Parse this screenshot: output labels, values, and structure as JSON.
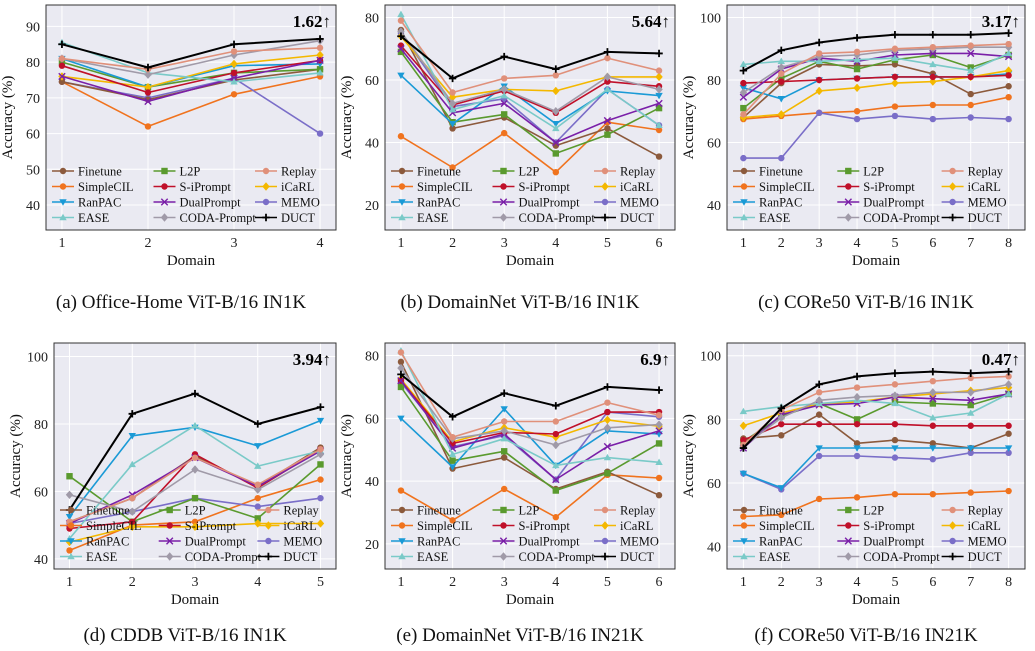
{
  "legend_labels": [
    "Finetune",
    "L2P",
    "Replay",
    "SimpleCIL",
    "S-iPrompt",
    "iCaRL",
    "RanPAC",
    "DualPrompt",
    "MEMO",
    "EASE",
    "CODA-Prompt",
    "DUCT"
  ],
  "methods": [
    {
      "name": "Finetune",
      "color": "#8c5a3c",
      "marker": "circle"
    },
    {
      "name": "L2P",
      "color": "#5a9a2e",
      "marker": "square"
    },
    {
      "name": "Replay",
      "color": "#e0907a",
      "marker": "circle"
    },
    {
      "name": "SimpleCIL",
      "color": "#f0731e",
      "marker": "circle"
    },
    {
      "name": "S-iPrompt",
      "color": "#c0102a",
      "marker": "circle"
    },
    {
      "name": "iCaRL",
      "color": "#f4b800",
      "marker": "diamond"
    },
    {
      "name": "RanPAC",
      "color": "#1a9ad6",
      "marker": "tri-down"
    },
    {
      "name": "DualPrompt",
      "color": "#7a1fa8",
      "marker": "x"
    },
    {
      "name": "MEMO",
      "color": "#7a6ec8",
      "marker": "circle"
    },
    {
      "name": "EASE",
      "color": "#7acac8",
      "marker": "tri-up"
    },
    {
      "name": "CODA-Prompt",
      "color": "#a09aa8",
      "marker": "diamond"
    },
    {
      "name": "DUCT",
      "color": "#000000",
      "marker": "plus"
    }
  ],
  "chart_data": [
    {
      "type": "line",
      "caption": "(a) Office-Home ViT-B/16 IN1K",
      "annotation": "1.62↑",
      "xlabel": "Domain",
      "ylabel": "Accuracy (%)",
      "ylim": [
        33,
        96
      ],
      "yticks": [
        40,
        50,
        60,
        70,
        80,
        90
      ],
      "x": [
        1,
        2,
        3,
        4
      ],
      "series": [
        {
          "name": "Finetune",
          "values": [
            74.5,
            69.5,
            75,
            78
          ]
        },
        {
          "name": "L2P",
          "values": [
            80,
            73,
            77,
            78
          ]
        },
        {
          "name": "Replay",
          "values": [
            81,
            78,
            83,
            84
          ]
        },
        {
          "name": "SimpleCIL",
          "values": [
            74.5,
            62,
            71,
            76
          ]
        },
        {
          "name": "S-iPrompt",
          "values": [
            79,
            71.5,
            77,
            80.5
          ]
        },
        {
          "name": "iCaRL",
          "values": [
            76,
            73,
            79.5,
            82
          ]
        },
        {
          "name": "RanPAC",
          "values": [
            81,
            73,
            79,
            79.5
          ]
        },
        {
          "name": "DualPrompt",
          "values": [
            76,
            69,
            75.5,
            80.5
          ]
        },
        {
          "name": "MEMO",
          "values": [
            74.5,
            70,
            75.5,
            60
          ]
        },
        {
          "name": "EASE",
          "values": [
            85.5,
            77,
            74.5,
            77
          ]
        },
        {
          "name": "CODA-Prompt",
          "values": [
            81,
            76.5,
            82,
            86
          ]
        },
        {
          "name": "DUCT",
          "values": [
            85,
            78.5,
            85,
            86.5
          ]
        }
      ]
    },
    {
      "type": "line",
      "caption": "(b) DomainNet ViT-B/16 IN1K",
      "annotation": "5.64↑",
      "xlabel": "Domain",
      "ylabel": "Accuracy (%)",
      "ylim": [
        12,
        84
      ],
      "yticks": [
        20,
        40,
        60,
        80
      ],
      "x": [
        1,
        2,
        3,
        4,
        5,
        6
      ],
      "series": [
        {
          "name": "Finetune",
          "values": [
            76,
            44.5,
            48,
            39,
            44.5,
            35.5
          ]
        },
        {
          "name": "L2P",
          "values": [
            69,
            46.5,
            49,
            36.5,
            42.5,
            51
          ]
        },
        {
          "name": "Replay",
          "values": [
            79,
            56,
            60.5,
            61.5,
            67,
            63
          ]
        },
        {
          "name": "SimpleCIL",
          "values": [
            42,
            32,
            43,
            30.5,
            46.5,
            44
          ]
        },
        {
          "name": "S-iPrompt",
          "values": [
            71,
            52,
            56.5,
            49.5,
            59.5,
            58
          ]
        },
        {
          "name": "iCaRL",
          "values": [
            74,
            54.5,
            57,
            56.5,
            61,
            61
          ]
        },
        {
          "name": "RanPAC",
          "values": [
            61.5,
            46,
            58,
            46,
            56.5,
            55
          ]
        },
        {
          "name": "DualPrompt",
          "values": [
            70,
            49.5,
            52.5,
            40,
            47,
            52.5
          ]
        },
        {
          "name": "MEMO",
          "values": [
            75,
            51.5,
            54,
            40,
            57,
            45.5
          ]
        },
        {
          "name": "EASE",
          "values": [
            81,
            50.5,
            55,
            44.5,
            57,
            45.5
          ]
        },
        {
          "name": "CODA-Prompt",
          "values": [
            75.5,
            52.5,
            57,
            50,
            61,
            57
          ]
        },
        {
          "name": "DUCT",
          "values": [
            74,
            60.5,
            67.5,
            63.5,
            69,
            68.5
          ]
        }
      ]
    },
    {
      "type": "line",
      "caption": "(c) CORe50 ViT-B/16 IN1K",
      "annotation": "3.17↑",
      "xlabel": "Domain",
      "ylabel": "Accuracy (%)",
      "ylim": [
        32,
        104
      ],
      "yticks": [
        40,
        60,
        80,
        100
      ],
      "x": [
        1,
        2,
        3,
        4,
        5,
        6,
        7,
        8
      ],
      "series": [
        {
          "name": "Finetune",
          "values": [
            68,
            79,
            85,
            84.5,
            85,
            82,
            75.5,
            78
          ]
        },
        {
          "name": "L2P",
          "values": [
            71,
            80.5,
            86,
            83.5,
            86.5,
            88,
            84,
            88
          ]
        },
        {
          "name": "Replay",
          "values": [
            69,
            82,
            88.5,
            89,
            90,
            90.5,
            91,
            91.5
          ]
        },
        {
          "name": "SimpleCIL",
          "values": [
            67.5,
            68.5,
            69.5,
            70,
            71.5,
            72,
            72,
            74.5
          ]
        },
        {
          "name": "S-iPrompt",
          "values": [
            79,
            79.5,
            80,
            80.5,
            81,
            81,
            81,
            81.5
          ]
        },
        {
          "name": "iCaRL",
          "values": [
            68,
            69,
            76.5,
            77.5,
            79,
            79.5,
            81,
            83
          ]
        },
        {
          "name": "RanPAC",
          "values": [
            77.5,
            74,
            80,
            80.5,
            81,
            81,
            81,
            82
          ]
        },
        {
          "name": "DualPrompt",
          "values": [
            74.5,
            83.5,
            87,
            86,
            88,
            88.5,
            88.5,
            87.5
          ]
        },
        {
          "name": "MEMO",
          "values": [
            55,
            55,
            69.5,
            67.5,
            68.5,
            67.5,
            68,
            67.5
          ]
        },
        {
          "name": "EASE",
          "values": [
            85,
            86,
            86,
            86.5,
            87,
            85,
            83,
            88.5
          ]
        },
        {
          "name": "CODA-Prompt",
          "values": [
            76,
            84,
            87.5,
            88,
            89.5,
            90,
            90.5,
            90.5
          ]
        },
        {
          "name": "DUCT",
          "values": [
            83,
            89.5,
            92,
            93.5,
            94.5,
            94.5,
            94.5,
            95
          ]
        }
      ]
    },
    {
      "type": "line",
      "caption": "(d) CDDB ViT-B/16 IN1K",
      "annotation": "3.94↑",
      "xlabel": "Domain",
      "ylabel": "Accuracy (%)",
      "ylim": [
        37,
        104
      ],
      "yticks": [
        40,
        60,
        80,
        100
      ],
      "x": [
        1,
        2,
        3,
        4,
        5
      ],
      "series": [
        {
          "name": "Finetune",
          "values": [
            51,
            58,
            70.5,
            61.5,
            73
          ]
        },
        {
          "name": "L2P",
          "values": [
            64.5,
            51,
            58,
            52,
            68
          ]
        },
        {
          "name": "Replay",
          "values": [
            51,
            58,
            70,
            62,
            72.5
          ]
        },
        {
          "name": "SimpleCIL",
          "values": [
            42.5,
            50,
            51,
            58,
            63.5
          ]
        },
        {
          "name": "S-iPrompt",
          "values": [
            49,
            51,
            71,
            61,
            72.5
          ]
        },
        {
          "name": "iCaRL",
          "values": [
            45,
            49.5,
            49.5,
            50.5,
            50.5
          ]
        },
        {
          "name": "RanPAC",
          "values": [
            52.5,
            76.5,
            79,
            73.5,
            81
          ]
        },
        {
          "name": "DualPrompt",
          "values": [
            50.5,
            59,
            70,
            61.5,
            72
          ]
        },
        {
          "name": "MEMO",
          "values": [
            50.5,
            54,
            58,
            55.5,
            58
          ]
        },
        {
          "name": "EASE",
          "values": [
            46,
            68,
            79.5,
            67.5,
            72
          ]
        },
        {
          "name": "CODA-Prompt",
          "values": [
            59,
            54,
            66.5,
            60.5,
            71
          ]
        },
        {
          "name": "DUCT",
          "values": [
            54.5,
            83,
            89,
            80,
            85
          ]
        }
      ]
    },
    {
      "type": "line",
      "caption": "(e) DomainNet ViT-B/16 IN21K",
      "annotation": "6.9↑",
      "xlabel": "Domain",
      "ylabel": "Accuracy (%)",
      "ylim": [
        12,
        84
      ],
      "yticks": [
        20,
        40,
        60,
        80
      ],
      "x": [
        1,
        2,
        3,
        4,
        5,
        6
      ],
      "series": [
        {
          "name": "Finetune",
          "values": [
            78,
            44,
            47.5,
            37.5,
            43,
            35.5
          ]
        },
        {
          "name": "L2P",
          "values": [
            70,
            46.5,
            49.5,
            37,
            42.5,
            52
          ]
        },
        {
          "name": "Replay",
          "values": [
            81,
            54,
            59,
            59,
            65,
            61
          ]
        },
        {
          "name": "SimpleCIL",
          "values": [
            37,
            27.5,
            37.5,
            28.5,
            42,
            41
          ]
        },
        {
          "name": "S-iPrompt",
          "values": [
            72,
            52,
            55.5,
            55,
            62,
            62
          ]
        },
        {
          "name": "iCaRL",
          "values": [
            72.5,
            52.5,
            57,
            54,
            59.5,
            57.5
          ]
        },
        {
          "name": "RanPAC",
          "values": [
            60,
            44.5,
            63,
            45,
            56,
            55
          ]
        },
        {
          "name": "DualPrompt",
          "values": [
            72,
            50.5,
            55,
            40.5,
            51,
            56
          ]
        },
        {
          "name": "MEMO",
          "values": [
            71.5,
            51,
            54.5,
            40.5,
            62,
            60.5
          ]
        },
        {
          "name": "EASE",
          "values": [
            81.5,
            48.5,
            53.5,
            45,
            47.5,
            46
          ]
        },
        {
          "name": "CODA-Prompt",
          "values": [
            76,
            53.5,
            56,
            51.5,
            57,
            58
          ]
        },
        {
          "name": "DUCT",
          "values": [
            74,
            60.5,
            68,
            64,
            70,
            69
          ]
        }
      ]
    },
    {
      "type": "line",
      "caption": "(f) CORe50 ViT-B/16 IN21K",
      "annotation": "0.47↑",
      "xlabel": "Domain",
      "ylabel": "Accuracy (%)",
      "ylim": [
        33,
        104
      ],
      "yticks": [
        40,
        60,
        80,
        100
      ],
      "x": [
        1,
        2,
        3,
        4,
        5,
        6,
        7,
        8
      ],
      "series": [
        {
          "name": "Finetune",
          "values": [
            74,
            75,
            81.5,
            72.5,
            73.5,
            72.5,
            71,
            75.5
          ]
        },
        {
          "name": "L2P",
          "values": [
            73,
            81,
            85,
            80,
            85.5,
            85,
            84.5,
            88
          ]
        },
        {
          "name": "Replay",
          "values": [
            72,
            83,
            88.5,
            90,
            91,
            92,
            93,
            93.5
          ]
        },
        {
          "name": "SimpleCIL",
          "values": [
            49.5,
            50,
            55,
            55.5,
            56.5,
            56.5,
            57,
            57.5
          ]
        },
        {
          "name": "S-iPrompt",
          "values": [
            73.5,
            78.5,
            78.5,
            78.5,
            78.5,
            78,
            78,
            78
          ]
        },
        {
          "name": "iCaRL",
          "values": [
            78,
            82,
            85,
            85.5,
            87,
            88,
            89,
            90
          ]
        },
        {
          "name": "RanPAC",
          "values": [
            63,
            58.5,
            71,
            71,
            71,
            71,
            71,
            71
          ]
        },
        {
          "name": "DualPrompt",
          "values": [
            71,
            81.5,
            84.5,
            85,
            87,
            86.5,
            86,
            88
          ]
        },
        {
          "name": "MEMO",
          "values": [
            63,
            58,
            68.5,
            68.5,
            68,
            67.5,
            69.5,
            69.5
          ]
        },
        {
          "name": "EASE",
          "values": [
            82.5,
            84,
            85,
            86,
            85,
            80.5,
            82,
            88
          ]
        },
        {
          "name": "CODA-Prompt",
          "values": [
            71.5,
            80.5,
            86,
            87,
            87.5,
            88.5,
            88.5,
            91
          ]
        },
        {
          "name": "DUCT",
          "values": [
            71,
            83.5,
            91,
            93.5,
            94.5,
            95,
            94.5,
            95
          ]
        }
      ]
    }
  ]
}
